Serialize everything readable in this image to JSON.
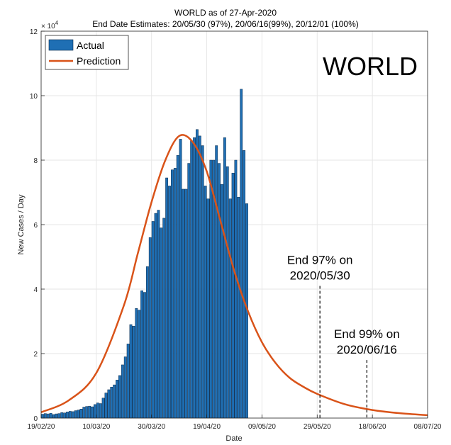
{
  "chart_data": {
    "type": "bar",
    "title": "WORLD as of 27-Apr-2020",
    "subtitle": "End Date Estimates: 20/05/30 (97%), 20/06/16(99%), 20/12/01 (100%)",
    "xlabel": "Date",
    "ylabel": "New Cases / Day",
    "y_exponent_label": "× 10",
    "y_exponent_power": "4",
    "ylim": [
      0,
      120000
    ],
    "yticks": [
      0,
      20000,
      40000,
      60000,
      80000,
      100000,
      120000
    ],
    "ytick_labels": [
      "0",
      "2",
      "4",
      "6",
      "8",
      "10",
      "12"
    ],
    "xlim": [
      "2020-02-19",
      "2020-07-08"
    ],
    "xticks": [
      "2020-02-19",
      "2020-03-10",
      "2020-03-30",
      "2020-04-19",
      "2020-05-09",
      "2020-05-29",
      "2020-06-18",
      "2020-07-08"
    ],
    "xtick_labels": [
      "19/02/20",
      "10/03/20",
      "30/03/20",
      "19/04/20",
      "09/05/20",
      "29/05/20",
      "18/06/20",
      "08/07/20"
    ],
    "grid": true,
    "legend_position": "top-left",
    "watermark_label": "WORLD",
    "colors": {
      "actual": "#1f6fb4",
      "actual_edge": "#0b2a4a",
      "prediction": "#d95319",
      "grid": "#e6e6e6",
      "axis": "#262626"
    },
    "series": [
      {
        "name": "Actual",
        "type": "bar",
        "start_date": "2020-02-19",
        "values": [
          1200,
          1400,
          1300,
          1500,
          1100,
          1300,
          1400,
          1700,
          1600,
          1900,
          2100,
          2000,
          2300,
          2500,
          2800,
          3400,
          3600,
          3700,
          3500,
          4200,
          4700,
          4500,
          6200,
          7800,
          8800,
          9600,
          10300,
          11800,
          13200,
          16500,
          19000,
          23000,
          29000,
          28500,
          34000,
          33500,
          39500,
          39000,
          47000,
          56000,
          61000,
          63500,
          64500,
          59000,
          62000,
          74500,
          72000,
          77000,
          77500,
          81500,
          86500,
          71000,
          71000,
          79000,
          86000,
          87000,
          89500,
          87500,
          84500,
          72000,
          68000,
          80000,
          80000,
          84500,
          79000,
          72500,
          87000,
          78000,
          68000,
          76000,
          80000,
          68500,
          102000,
          83000,
          66500
        ],
        "color": "#1f6fb4"
      },
      {
        "name": "Prediction",
        "type": "line",
        "x": [
          "2020-02-19",
          "2020-02-29",
          "2020-03-10",
          "2020-03-20",
          "2020-03-25",
          "2020-03-30",
          "2020-04-04",
          "2020-04-09",
          "2020-04-14",
          "2020-04-19",
          "2020-04-24",
          "2020-04-29",
          "2020-05-04",
          "2020-05-09",
          "2020-05-14",
          "2020-05-19",
          "2020-05-24",
          "2020-05-29",
          "2020-06-08",
          "2020-06-18",
          "2020-06-28",
          "2020-07-08"
        ],
        "y": [
          1800,
          5500,
          14000,
          35000,
          51000,
          67000,
          80000,
          87500,
          85500,
          76500,
          61000,
          45500,
          33000,
          23500,
          17000,
          12500,
          9700,
          7500,
          4300,
          2500,
          1500,
          900
        ],
        "color": "#d95319"
      }
    ],
    "annotations": [
      {
        "date": "2020-05-30",
        "value": 41000,
        "line1": "End 97% on",
        "line2": "2020/05/30"
      },
      {
        "date": "2020-06-16",
        "value": 18000,
        "line1": "End 99% on",
        "line2": "2020/06/16"
      }
    ]
  }
}
